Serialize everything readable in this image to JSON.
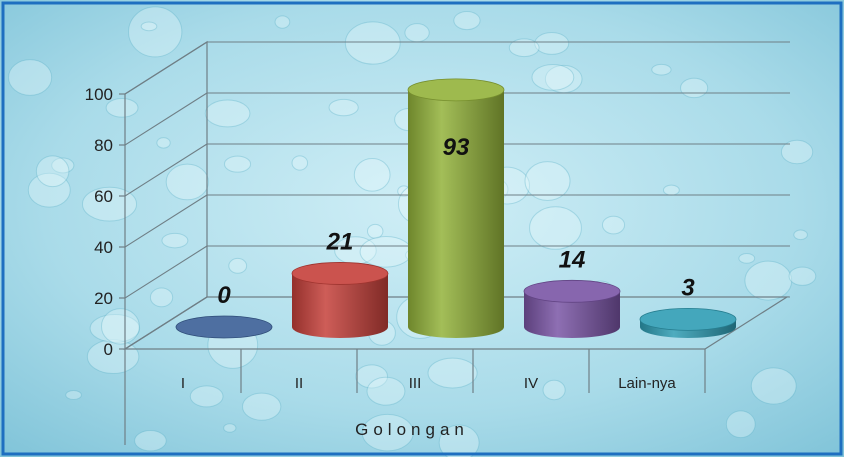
{
  "chart_data": {
    "type": "bar",
    "style": "3d-cylinder",
    "categories": [
      "I",
      "II",
      "III",
      "IV",
      "Lain-nya"
    ],
    "values": [
      0,
      21,
      93,
      14,
      3
    ],
    "data_labels": [
      "0",
      "21",
      "93",
      "14",
      "3"
    ],
    "xlabel": "Golongan",
    "ylabel": "",
    "ylim": [
      0,
      100
    ],
    "yticks": [
      "0",
      "20",
      "40",
      "60",
      "80",
      "100"
    ],
    "grid": true,
    "legend": "none",
    "colors": {
      "I": "#3a5f96",
      "II": "#c5403a",
      "III": "#93b23a",
      "IV": "#7a55a5",
      "Lain-nya": "#2f9db4",
      "background": "#a8d8e6",
      "frame": "#1e6fc0"
    }
  }
}
